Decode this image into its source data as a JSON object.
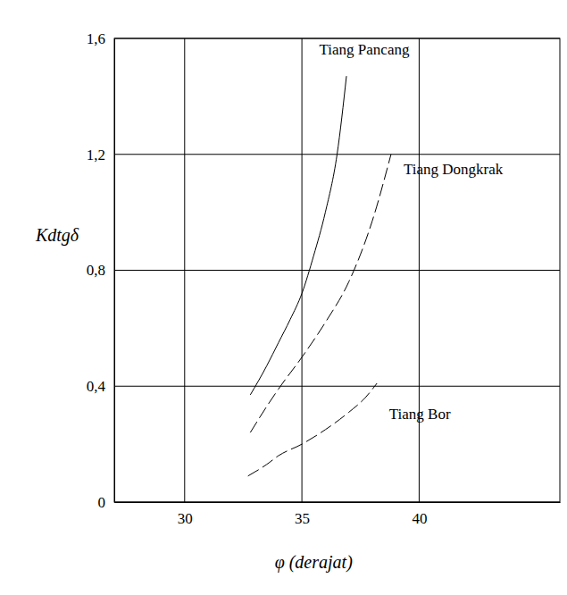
{
  "chart_data": {
    "type": "line",
    "x_label": "φ (derajat)",
    "y_label": "Kdtgδ",
    "xlim": [
      27,
      46
    ],
    "ylim": [
      0,
      1.6
    ],
    "xticks": [
      30,
      35,
      40
    ],
    "yticks": [
      0,
      {
        "value": 0.4,
        "label": "0,4"
      },
      {
        "value": 0.8,
        "label": "0,8"
      },
      {
        "value": 1.2,
        "label": "1,2"
      },
      {
        "value": 1.6,
        "label": "1,6"
      }
    ],
    "grid": true,
    "color": "#000000",
    "series": [
      {
        "name": "Tiang Pancang",
        "line_style": "solid",
        "x": [
          32.8,
          33.5,
          34,
          34.5,
          35,
          35.5,
          36,
          36.5,
          36.9
        ],
        "values": [
          0.37,
          0.47,
          0.55,
          0.63,
          0.72,
          0.85,
          1.0,
          1.2,
          1.47
        ]
      },
      {
        "name": "Tiang Dongkrak",
        "line_style": "dashed",
        "x": [
          32.8,
          33.5,
          34,
          35,
          36,
          37,
          38,
          38.8
        ],
        "values": [
          0.24,
          0.33,
          0.39,
          0.5,
          0.62,
          0.76,
          0.97,
          1.2
        ]
      },
      {
        "name": "Tiang Bor",
        "line_style": "dashed",
        "x": [
          32.7,
          33.5,
          34,
          35,
          36,
          37,
          37.7,
          38.2
        ],
        "values": [
          0.09,
          0.13,
          0.16,
          0.2,
          0.25,
          0.31,
          0.36,
          0.41
        ]
      }
    ]
  }
}
